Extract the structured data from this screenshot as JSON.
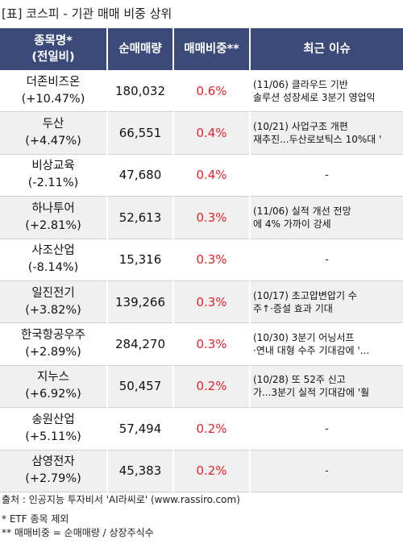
{
  "title": "[표] 코스피 - 기관 매매 비중 상위",
  "table": {
    "headers": {
      "name_line1": "종목명*",
      "name_line2": "(전일비)",
      "volume": "순매매량",
      "ratio": "매매비중**",
      "issue": "최근 이슈"
    },
    "rows": [
      {
        "name": "더존비즈온",
        "change": "(+10.47%)",
        "volume": "180,032",
        "ratio": "0.6%",
        "issue1": "(11/06) 클라우드 기반",
        "issue2": "솔루션 성장세로 3분기 영업익"
      },
      {
        "name": "두산",
        "change": "(+4.47%)",
        "volume": "66,551",
        "ratio": "0.4%",
        "issue1": "(10/21) 사업구조 개편",
        "issue2": "재추진...두산로보틱스 10%대 '"
      },
      {
        "name": "비상교육",
        "change": "(-2.11%)",
        "volume": "47,680",
        "ratio": "0.4%",
        "issue1": "-",
        "issue2": ""
      },
      {
        "name": "하나투어",
        "change": "(+2.81%)",
        "volume": "52,613",
        "ratio": "0.3%",
        "issue1": "(11/06) 실적 개선 전망",
        "issue2": "에 4% 가까이 강세"
      },
      {
        "name": "사조산업",
        "change": "(-8.14%)",
        "volume": "15,316",
        "ratio": "0.3%",
        "issue1": "-",
        "issue2": ""
      },
      {
        "name": "일진전기",
        "change": "(+3.82%)",
        "volume": "139,266",
        "ratio": "0.3%",
        "issue1": "(10/17) 초고압변압기 수",
        "issue2": "주↑·증설 효과 기대"
      },
      {
        "name": "한국항공우주",
        "change": "(+2.89%)",
        "volume": "284,270",
        "ratio": "0.3%",
        "issue1": "(10/30) 3분기 어닝서프",
        "issue2": "·연내 대형 수주 기대감에 '..."
      },
      {
        "name": "지누스",
        "change": "(+6.92%)",
        "volume": "50,457",
        "ratio": "0.2%",
        "issue1": "(10/28) 또 52주 신고",
        "issue2": "가...3분기 실적 기대감에 '훨"
      },
      {
        "name": "송원산업",
        "change": "(+5.11%)",
        "volume": "57,494",
        "ratio": "0.2%",
        "issue1": "-",
        "issue2": ""
      },
      {
        "name": "삼영전자",
        "change": "(+2.79%)",
        "volume": "45,383",
        "ratio": "0.2%",
        "issue1": "-",
        "issue2": ""
      }
    ]
  },
  "footer": {
    "source": "출처 : 인공지능 투자비서 'AI라씨로' (www.rassiro.com)",
    "note1": "* ETF 종목 제외",
    "note2": "** 매매비중 = 순매매량 / 상장주식수"
  }
}
